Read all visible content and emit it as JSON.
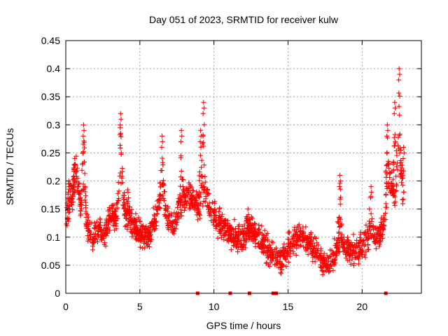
{
  "chart_data": {
    "type": "scatter",
    "title": "Day 051 of 2023, SRMTID for receiver kulw",
    "xlabel": "GPS time / hours",
    "ylabel": "SRMTID / TECUs",
    "xlim": [
      0,
      24
    ],
    "ylim": [
      0,
      0.45
    ],
    "xticks": [
      0,
      5,
      10,
      15,
      20
    ],
    "xtick_labels": [
      "0",
      "5",
      "10",
      "15",
      "20"
    ],
    "yticks": [
      0,
      0.05,
      0.1,
      0.15,
      0.2,
      0.25,
      0.3,
      0.35,
      0.4,
      0.45
    ],
    "ytick_labels": [
      "0",
      "0.05",
      "0.1",
      "0.15",
      "0.2",
      "0.25",
      "0.3",
      "0.35",
      "0.4",
      "0.45"
    ],
    "grid": true,
    "marker": "plus",
    "series_color": "#ff0000",
    "series": [
      {
        "name": "SRMTID",
        "profile": [
          [
            0.0,
            0.12
          ],
          [
            0.3,
            0.16
          ],
          [
            0.5,
            0.18
          ],
          [
            0.7,
            0.22
          ],
          [
            1.0,
            0.15
          ],
          [
            1.2,
            0.2
          ],
          [
            1.4,
            0.12
          ],
          [
            1.8,
            0.1
          ],
          [
            2.2,
            0.12
          ],
          [
            2.6,
            0.1
          ],
          [
            3.0,
            0.14
          ],
          [
            3.4,
            0.13
          ],
          [
            3.7,
            0.21
          ],
          [
            4.0,
            0.14
          ],
          [
            4.5,
            0.12
          ],
          [
            5.0,
            0.11
          ],
          [
            5.5,
            0.1
          ],
          [
            6.0,
            0.13
          ],
          [
            6.5,
            0.18
          ],
          [
            6.8,
            0.14
          ],
          [
            7.2,
            0.12
          ],
          [
            7.8,
            0.15
          ],
          [
            8.2,
            0.18
          ],
          [
            8.6,
            0.17
          ],
          [
            9.0,
            0.15
          ],
          [
            9.3,
            0.19
          ],
          [
            9.6,
            0.16
          ],
          [
            10.0,
            0.14
          ],
          [
            10.5,
            0.12
          ],
          [
            11.0,
            0.11
          ],
          [
            11.5,
            0.1
          ],
          [
            12.0,
            0.1
          ],
          [
            12.5,
            0.11
          ],
          [
            13.0,
            0.1
          ],
          [
            13.5,
            0.08
          ],
          [
            14.0,
            0.07
          ],
          [
            14.5,
            0.06
          ],
          [
            15.0,
            0.08
          ],
          [
            15.5,
            0.1
          ],
          [
            16.0,
            0.1
          ],
          [
            16.5,
            0.09
          ],
          [
            17.0,
            0.07
          ],
          [
            17.5,
            0.05
          ],
          [
            18.0,
            0.06
          ],
          [
            18.5,
            0.09
          ],
          [
            19.0,
            0.08
          ],
          [
            19.5,
            0.07
          ],
          [
            20.0,
            0.09
          ],
          [
            20.5,
            0.1
          ],
          [
            21.0,
            0.1
          ],
          [
            21.5,
            0.12
          ],
          [
            21.8,
            0.2
          ],
          [
            22.2,
            0.17
          ],
          [
            22.5,
            0.25
          ],
          [
            22.8,
            0.16
          ]
        ],
        "spikes": [
          [
            1.2,
            0.3
          ],
          [
            0.6,
            0.24
          ],
          [
            3.7,
            0.32
          ],
          [
            6.5,
            0.28
          ],
          [
            7.8,
            0.29
          ],
          [
            9.3,
            0.34
          ],
          [
            9.1,
            0.29
          ],
          [
            12.3,
            0.15
          ],
          [
            18.5,
            0.21
          ],
          [
            20.6,
            0.19
          ],
          [
            21.7,
            0.3
          ],
          [
            22.2,
            0.34
          ],
          [
            22.5,
            0.4
          ],
          [
            22.8,
            0.26
          ],
          [
            0.2,
            0.2
          ],
          [
            4.2,
            0.18
          ]
        ],
        "ground_markers_x": [
          8.9,
          11.1,
          12.4,
          14.0,
          14.2,
          21.6
        ]
      }
    ]
  }
}
